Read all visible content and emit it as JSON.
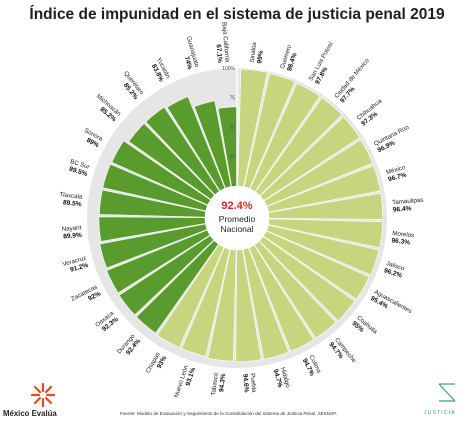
{
  "title": "Índice de impunidad en el sistema de justicia penal 2019",
  "center": {
    "value": "92.4%",
    "line1": "Promedio",
    "line2": "Nacional"
  },
  "footer": {
    "source": "Fuente: Modelo de Evaluación y Seguimiento de la Consolidación del Sistema de Justicia Penal, SESNSP."
  },
  "brand": {
    "left": "México Evalúa",
    "right": "JUSTICIA"
  },
  "colors": {
    "dark_green": "#5a9b2e",
    "light_green": "#c6d57e",
    "panel_gray": "#e6e6e6",
    "axis_red": "#d62828"
  },
  "chart_data": {
    "type": "radial bar",
    "title": "Índice de impunidad en el sistema de justicia penal 2019",
    "radial_axis": {
      "min": 0,
      "max": 100,
      "ticks": [
        "0",
        "25",
        "50",
        "75",
        "100%"
      ]
    },
    "national_average": 92.4,
    "categories": [
      "Sinaloa",
      "Guerrero",
      "San Luis Potosí",
      "Ciudad de México",
      "Chihuahua",
      "Quintana Roo",
      "México",
      "Tamaulipas",
      "Morelos",
      "Jalisco",
      "Aguascalientes",
      "Coahuila",
      "Campeche",
      "Colima",
      "Hidalgo",
      "Puebla",
      "Tabasco",
      "Nuevo León",
      "Chiapas",
      "Durango",
      "Oaxaca",
      "Zacatecas",
      "Veracruz",
      "Nayarit",
      "Tlaxcala",
      "BC Sur",
      "Sonora",
      "Michoacán",
      "Querétaro",
      "Yucatán",
      "Guanajuato",
      "Baja California"
    ],
    "values": [
      99,
      98.4,
      97.8,
      97.7,
      97.3,
      96.9,
      96.7,
      96.4,
      96.3,
      96.2,
      95.4,
      95,
      94.7,
      94.7,
      94.7,
      94.6,
      94.3,
      93.1,
      93,
      92.4,
      92.3,
      92,
      91.2,
      89.9,
      89.5,
      89.5,
      89,
      85.2,
      85.2,
      83.8,
      74,
      67.1
    ],
    "value_labels": [
      "99%",
      "98.4%",
      "97.8%",
      "97.7%",
      "97.3%",
      "96.9%",
      "96.7%",
      "96.4%",
      "96.3%",
      "96.2%",
      "95.4%",
      "95%",
      "94.7%",
      "94.7%",
      "94.7%",
      "94.6%",
      "94.3%",
      "93.1%",
      "93%",
      "92.4%",
      "92.3%",
      "92%",
      "91.2%",
      "89.9%",
      "89.5%",
      "89.5%",
      "89%",
      "85.2%",
      "85.2%",
      "83.8%",
      "74%",
      "67.1%"
    ],
    "bar_colors": "light green for values above the national average, dark green for values at or below it"
  }
}
